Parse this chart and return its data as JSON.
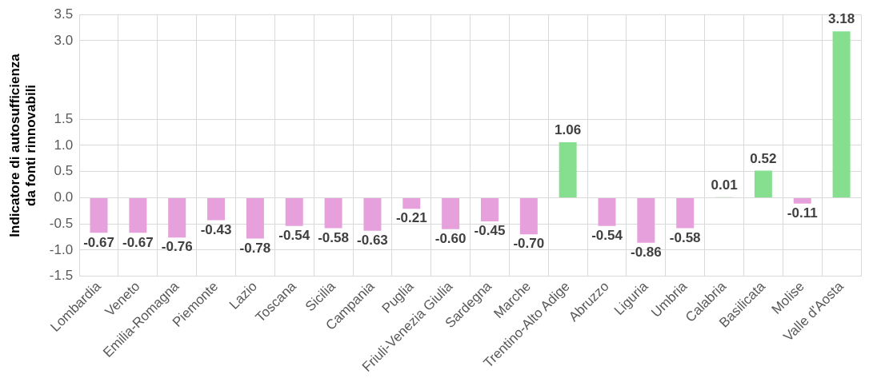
{
  "chart_data": {
    "type": "bar",
    "ylabel": "Indicatore di autosufficienza\nda fonti rinnovabili",
    "categories": [
      "Lombardia",
      "Veneto",
      "Emilia-Romagna",
      "Piemonte",
      "Lazio",
      "Toscana",
      "Sicilia",
      "Campania",
      "Puglia",
      "Friuli-Venezia Giulia",
      "Sardegna",
      "Marche",
      "Trentino-Alto Adige",
      "Abruzzo",
      "Liguria",
      "Umbria",
      "Calabria",
      "Basilicata",
      "Molise",
      "Valle d'Aosta"
    ],
    "values": [
      -0.67,
      -0.67,
      -0.76,
      -0.43,
      -0.78,
      -0.54,
      -0.58,
      -0.63,
      -0.21,
      -0.6,
      -0.45,
      -0.7,
      1.06,
      -0.54,
      -0.86,
      -0.58,
      0.01,
      0.52,
      -0.11,
      3.18
    ],
    "value_labels": [
      "-0.67",
      "-0.67",
      "-0.76",
      "-0.43",
      "-0.78",
      "-0.54",
      "-0.58",
      "-0.63",
      "-0.21",
      "-0.60",
      "-0.45",
      "-0.70",
      "1.06",
      "-0.54",
      "-0.86",
      "-0.58",
      "0.01",
      "0.52",
      "-0.11",
      "3.18"
    ],
    "colors": [
      "#e6a0dc",
      "#e6a0dc",
      "#e6a0dc",
      "#e6a0dc",
      "#e6a0dc",
      "#e6a0dc",
      "#e6a0dc",
      "#e6a0dc",
      "#e6a0dc",
      "#e6a0dc",
      "#e6a0dc",
      "#e6a0dc",
      "#86df8e",
      "#e6a0dc",
      "#e6a0dc",
      "#e6a0dc",
      "#86df8e",
      "#86df8e",
      "#e6a0dc",
      "#86df8e"
    ],
    "ylim": [
      -1.5,
      3.5
    ],
    "yticks": [
      {
        "value": -1.5,
        "label": "-1.5"
      },
      {
        "value": -1,
        "label": "-1.0"
      },
      {
        "value": -0.5,
        "label": "-0.5"
      },
      {
        "value": 0,
        "label": "0.0"
      },
      {
        "value": 0.5,
        "label": "0.5"
      },
      {
        "value": 1,
        "label": "1.0"
      },
      {
        "value": 1.5,
        "label": "1.5"
      },
      {
        "value": 3,
        "label": "3.0"
      },
      {
        "value": 3.5,
        "label": "3.5"
      }
    ],
    "grid": true
  }
}
